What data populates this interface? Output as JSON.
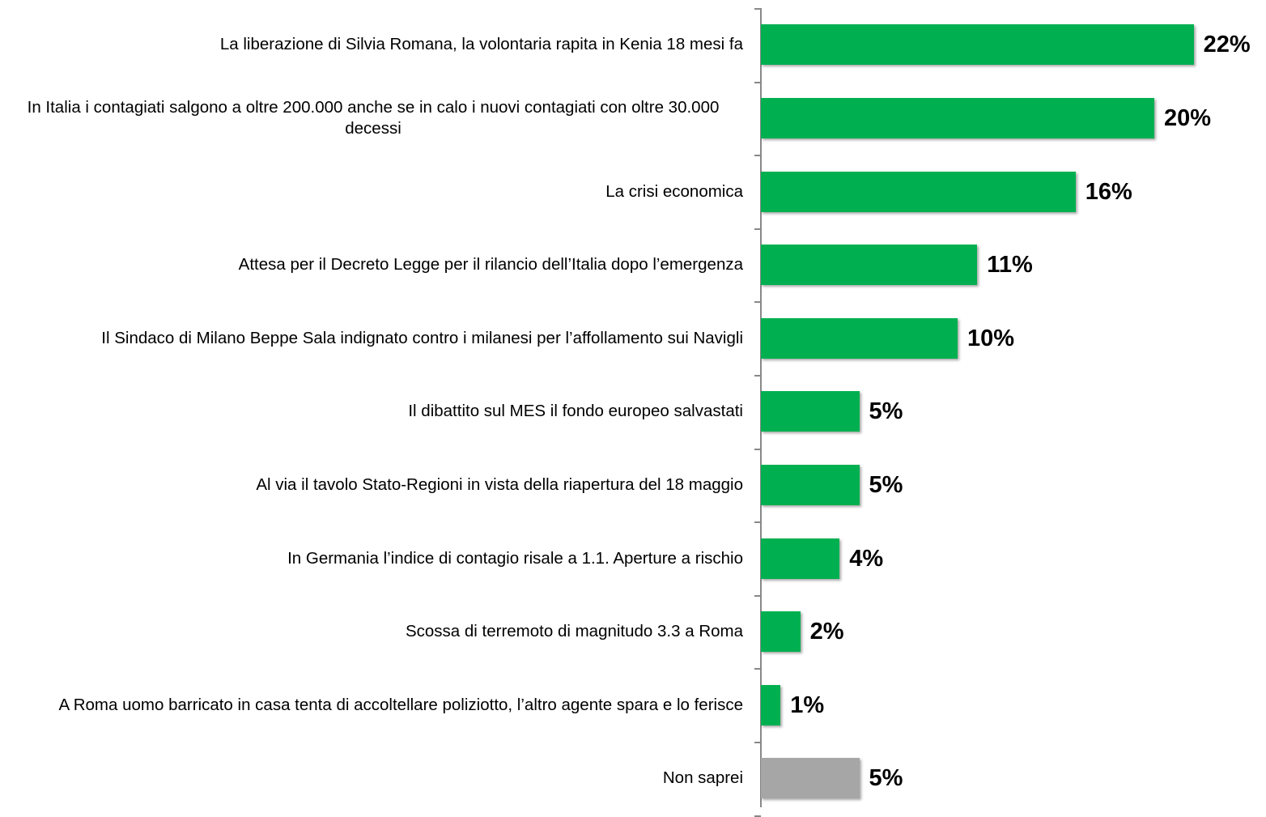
{
  "chart_data": {
    "type": "bar",
    "orientation": "horizontal",
    "categories": [
      "La liberazione di Silvia Romana, la volontaria rapita in Kenia 18 mesi fa",
      "In Italia i contagiati salgono a oltre 200.000 anche se in calo i nuovi contagiati con oltre 30.000 decessi",
      "La crisi economica",
      "Attesa per il Decreto Legge per il rilancio dell’Italia dopo l’emergenza",
      "Il Sindaco di Milano Beppe Sala indignato contro i milanesi per l’affollamento sui Navigli",
      "Il dibattito sul MES il fondo europeo salvastati",
      "Al via il tavolo Stato-Regioni in vista della riapertura del 18 maggio",
      "In Germania l’indice di contagio risale a 1.1. Aperture a rischio",
      "Scossa di terremoto di magnitudo 3.3 a Roma",
      "A Roma uomo barricato in casa tenta di accoltellare poliziotto, l’altro agente spara e lo ferisce",
      "Non saprei"
    ],
    "values": [
      22,
      20,
      16,
      11,
      10,
      5,
      5,
      4,
      2,
      1,
      5
    ],
    "value_labels": [
      "22%",
      "20%",
      "16%",
      "11%",
      "10%",
      "5%",
      "5%",
      "4%",
      "2%",
      "1%",
      "5%"
    ],
    "colors": [
      "#00b050",
      "#00b050",
      "#00b050",
      "#00b050",
      "#00b050",
      "#00b050",
      "#00b050",
      "#00b050",
      "#00b050",
      "#00b050",
      "#a6a6a6"
    ]
  }
}
